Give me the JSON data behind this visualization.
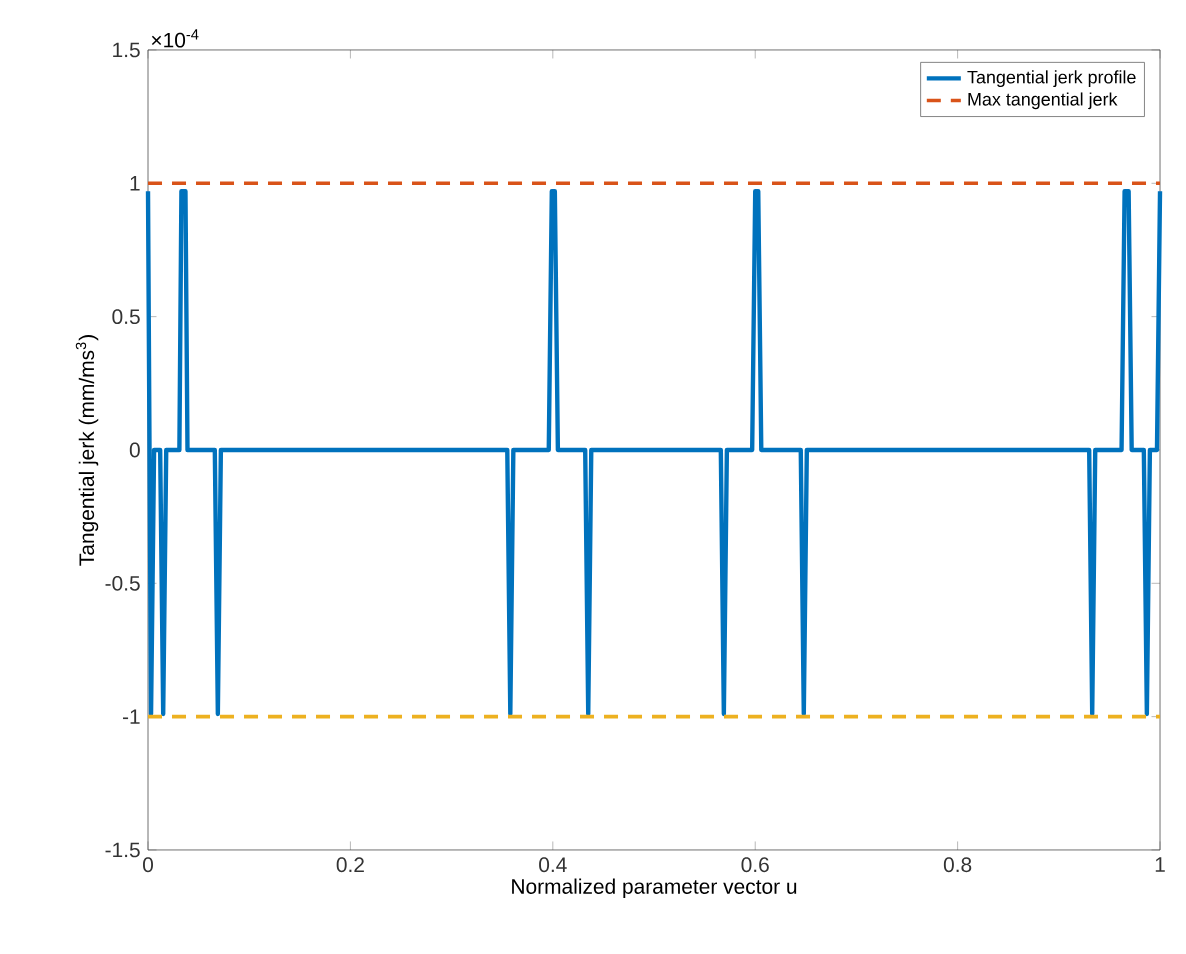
{
  "chart_data": {
    "type": "line",
    "xlabel": "Normalized parameter vector u",
    "ylabel": "Tangential jerk (mm/ms$^{3}$)",
    "annotations": [
      "×10$^{-4}$"
    ],
    "xlim": [
      0,
      1
    ],
    "xticks": [
      0,
      0.2,
      0.4,
      0.6,
      0.8,
      1
    ],
    "ylim": [
      -1.5,
      1.5
    ],
    "yticks": [
      -1.5,
      -1,
      -0.5,
      0,
      0.5,
      1,
      1.5
    ],
    "legend": "top right",
    "series": [
      {
        "name": "Tangential jerk profile",
        "color": "#0072bd",
        "x": [
          0,
          0.003,
          0.006,
          0.012,
          0.015,
          0.018,
          0.031,
          0.033,
          0.037,
          0.039,
          0.066,
          0.069,
          0.072,
          0.355,
          0.358,
          0.361,
          0.396,
          0.399,
          0.402,
          0.405,
          0.432,
          0.435,
          0.438,
          0.566,
          0.569,
          0.572,
          0.597,
          0.6,
          0.603,
          0.606,
          0.645,
          0.648,
          0.651,
          0.93,
          0.933,
          0.936,
          0.962,
          0.965,
          0.969,
          0.972,
          0.984,
          0.987,
          0.99,
          0.997,
          1.0
        ],
        "values": [
          0.97,
          -0.99,
          0,
          0,
          -0.99,
          0,
          0,
          0.97,
          0.97,
          0,
          0,
          -0.99,
          0,
          0,
          -0.99,
          0,
          0,
          0.97,
          0.97,
          0,
          0,
          -0.99,
          0,
          0,
          -0.99,
          0,
          0,
          0.97,
          0.97,
          0,
          0,
          -0.99,
          0,
          0,
          -0.99,
          0,
          0,
          0.97,
          0.97,
          0,
          0,
          -0.99,
          0,
          0,
          0.97
        ]
      }
    ],
    "ref_lines": [
      {
        "axis": "y",
        "value": 1,
        "label": "Max tangential jerk",
        "color": "#d95319",
        "line_style": "dashed"
      },
      {
        "axis": "y",
        "value": -1,
        "color": "#edb120",
        "line_style": "dashed"
      }
    ]
  }
}
